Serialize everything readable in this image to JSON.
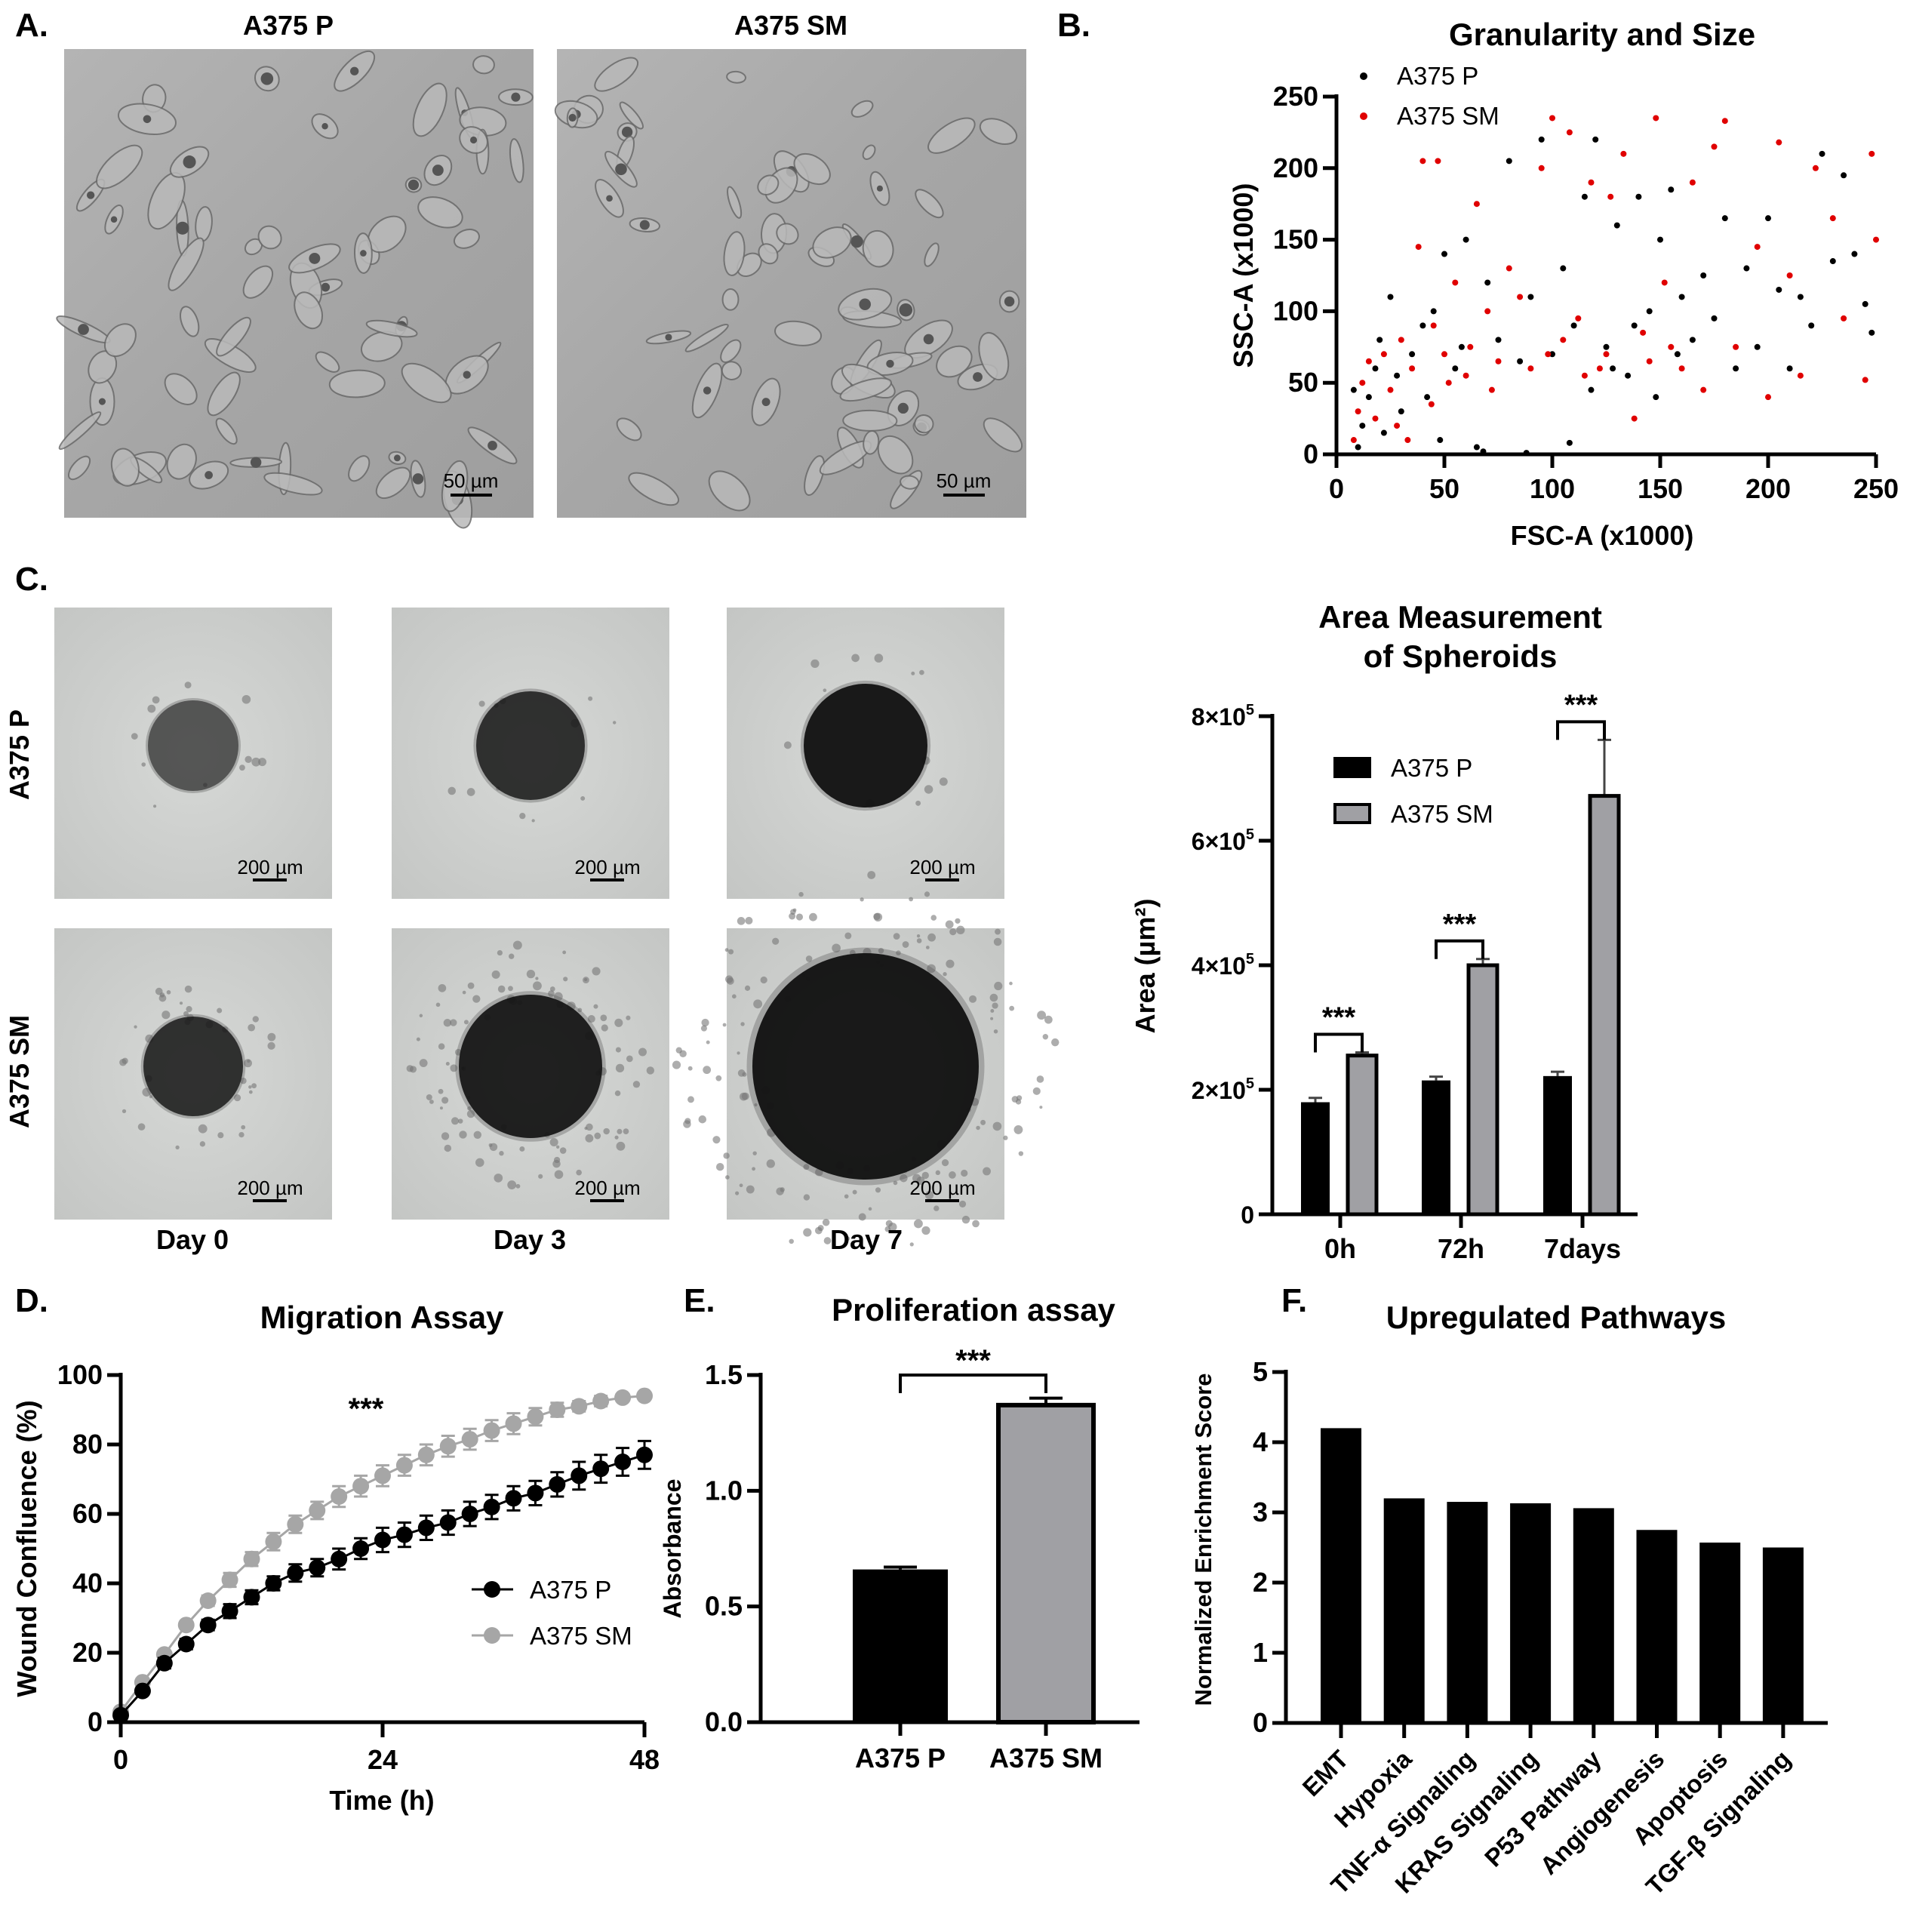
{
  "panel_a": {
    "letter": "A.",
    "labels": [
      "A375 P",
      "A375 SM"
    ],
    "scale_bar": "50 µm"
  },
  "panel_c": {
    "letter": "C.",
    "row_labels": [
      "A375 P",
      "A375 SM"
    ],
    "col_labels": [
      "Day 0",
      "Day 3",
      "Day 7"
    ],
    "scale_bar": "200 µm"
  },
  "panel_b": {
    "letter": "B."
  },
  "panel_d": {
    "letter": "D."
  },
  "panel_e": {
    "letter": "E."
  },
  "panel_f": {
    "letter": "F."
  },
  "chart_data": [
    {
      "id": "scatter",
      "type": "scatter",
      "title": "Granularity and Size",
      "xlabel": "FSC-A (x1000)",
      "ylabel": "SSC-A (x1000)",
      "xlim": [
        0,
        250
      ],
      "ylim": [
        0,
        250
      ],
      "xticks": [
        "0",
        "50",
        "100",
        "150",
        "200",
        "250"
      ],
      "yticks": [
        "0",
        "50",
        "100",
        "150",
        "200",
        "250"
      ],
      "legend_position": "top-left",
      "series": [
        {
          "name": "A375 P",
          "color": "#000000",
          "points": [
            [
              10,
              5
            ],
            [
              12,
              20
            ],
            [
              15,
              40
            ],
            [
              18,
              60
            ],
            [
              20,
              80
            ],
            [
              25,
              110
            ],
            [
              30,
              30
            ],
            [
              35,
              70
            ],
            [
              40,
              90
            ],
            [
              45,
              100
            ],
            [
              50,
              140
            ],
            [
              55,
              60
            ],
            [
              60,
              150
            ],
            [
              65,
              5
            ],
            [
              70,
              120
            ],
            [
              75,
              80
            ],
            [
              80,
              205
            ],
            [
              85,
              65
            ],
            [
              90,
              110
            ],
            [
              95,
              220
            ],
            [
              100,
              70
            ],
            [
              105,
              130
            ],
            [
              110,
              90
            ],
            [
              115,
              180
            ],
            [
              120,
              220
            ],
            [
              125,
              75
            ],
            [
              130,
              160
            ],
            [
              135,
              55
            ],
            [
              140,
              180
            ],
            [
              145,
              100
            ],
            [
              150,
              150
            ],
            [
              155,
              185
            ],
            [
              160,
              110
            ],
            [
              165,
              80
            ],
            [
              170,
              125
            ],
            [
              175,
              95
            ],
            [
              180,
              165
            ],
            [
              185,
              60
            ],
            [
              190,
              130
            ],
            [
              195,
              75
            ],
            [
              200,
              165
            ],
            [
              205,
              115
            ],
            [
              210,
              60
            ],
            [
              215,
              110
            ],
            [
              220,
              90
            ],
            [
              225,
              210
            ],
            [
              230,
              135
            ],
            [
              235,
              195
            ],
            [
              240,
              140
            ],
            [
              245,
              105
            ],
            [
              248,
              85
            ],
            [
              8,
              45
            ],
            [
              22,
              15
            ],
            [
              28,
              55
            ],
            [
              42,
              40
            ],
            [
              48,
              10
            ],
            [
              58,
              75
            ],
            [
              68,
              2
            ],
            [
              88,
              1
            ],
            [
              108,
              8
            ],
            [
              118,
              45
            ],
            [
              128,
              60
            ],
            [
              138,
              90
            ],
            [
              148,
              40
            ],
            [
              158,
              70
            ]
          ]
        },
        {
          "name": "A375 SM",
          "color": "#e00000",
          "points": [
            [
              8,
              10
            ],
            [
              10,
              30
            ],
            [
              12,
              50
            ],
            [
              15,
              65
            ],
            [
              18,
              25
            ],
            [
              22,
              70
            ],
            [
              25,
              45
            ],
            [
              30,
              80
            ],
            [
              35,
              60
            ],
            [
              38,
              145
            ],
            [
              40,
              205
            ],
            [
              45,
              90
            ],
            [
              47,
              205
            ],
            [
              50,
              70
            ],
            [
              55,
              120
            ],
            [
              60,
              55
            ],
            [
              65,
              175
            ],
            [
              70,
              100
            ],
            [
              75,
              65
            ],
            [
              80,
              130
            ],
            [
              85,
              110
            ],
            [
              90,
              60
            ],
            [
              95,
              200
            ],
            [
              100,
              235
            ],
            [
              105,
              80
            ],
            [
              108,
              225
            ],
            [
              112,
              95
            ],
            [
              118,
              190
            ],
            [
              122,
              60
            ],
            [
              127,
              180
            ],
            [
              133,
              210
            ],
            [
              138,
              25
            ],
            [
              142,
              85
            ],
            [
              148,
              235
            ],
            [
              152,
              120
            ],
            [
              160,
              60
            ],
            [
              165,
              190
            ],
            [
              175,
              215
            ],
            [
              180,
              233
            ],
            [
              185,
              75
            ],
            [
              195,
              145
            ],
            [
              200,
              40
            ],
            [
              205,
              218
            ],
            [
              210,
              125
            ],
            [
              215,
              55
            ],
            [
              222,
              200
            ],
            [
              230,
              165
            ],
            [
              235,
              95
            ],
            [
              245,
              52
            ],
            [
              248,
              210
            ],
            [
              250,
              150
            ],
            [
              28,
              20
            ],
            [
              33,
              10
            ],
            [
              44,
              35
            ],
            [
              52,
              50
            ],
            [
              62,
              75
            ],
            [
              72,
              45
            ],
            [
              98,
              70
            ],
            [
              115,
              55
            ],
            [
              125,
              70
            ],
            [
              145,
              65
            ],
            [
              155,
              75
            ],
            [
              170,
              45
            ]
          ]
        }
      ]
    },
    {
      "id": "spheroid_area",
      "type": "bar",
      "title": [
        "Area Measurement",
        "of Spheroids"
      ],
      "ylabel": "Area (µm²)",
      "categories": [
        "0h",
        "72h",
        "7days"
      ],
      "ylim": [
        0,
        800000
      ],
      "yticks": [
        {
          "v": 0,
          "base": "0",
          "exp": ""
        },
        {
          "v": 200000,
          "base": "2×10",
          "exp": "5"
        },
        {
          "v": 400000,
          "base": "4×10",
          "exp": "5"
        },
        {
          "v": 600000,
          "base": "6×10",
          "exp": "5"
        },
        {
          "v": 800000,
          "base": "8×10",
          "exp": "5"
        }
      ],
      "legend_position": "top-left",
      "series": [
        {
          "name": "A375 P",
          "color": "#000000",
          "values": [
            180000,
            215000,
            222000
          ],
          "errors": [
            7000,
            6000,
            7000
          ]
        },
        {
          "name": "A375 SM",
          "color": "#a0a0a4",
          "values": [
            255000,
            400000,
            672000
          ],
          "errors": [
            5000,
            10000,
            90000
          ]
        }
      ],
      "significance": [
        "***",
        "***",
        "***"
      ]
    },
    {
      "id": "migration",
      "type": "line",
      "title": "Migration Assay",
      "xlabel": "Time (h)",
      "ylabel": "Wound Confluence (%)",
      "xlim": [
        0,
        48
      ],
      "ylim": [
        0,
        100
      ],
      "xticks": [
        "0",
        "24",
        "48"
      ],
      "yticks": [
        "0",
        "20",
        "40",
        "60",
        "80",
        "100"
      ],
      "legend_position": "right",
      "annotation": "***",
      "x": [
        0,
        2,
        4,
        6,
        8,
        10,
        12,
        14,
        16,
        18,
        20,
        22,
        24,
        26,
        28,
        30,
        32,
        34,
        36,
        38,
        40,
        42,
        44,
        46,
        48
      ],
      "series": [
        {
          "name": "A375 P",
          "color": "#000000",
          "values": [
            2,
            9,
            17,
            22.5,
            28,
            32,
            36,
            40,
            43,
            44.5,
            47,
            50,
            52.5,
            54,
            56,
            57.5,
            60,
            62,
            64.5,
            66,
            68.5,
            71,
            73,
            75,
            77
          ],
          "errors": [
            0.5,
            1,
            1.5,
            1.5,
            1.5,
            2,
            2,
            2,
            2.5,
            2.5,
            3,
            3,
            3.5,
            3.5,
            3.5,
            3.5,
            3.5,
            3.5,
            3.5,
            3.5,
            3.5,
            4,
            4,
            4,
            4
          ]
        },
        {
          "name": "A375 SM",
          "color": "#a6a6a6",
          "values": [
            3,
            11.5,
            19.5,
            28,
            35,
            41,
            47,
            52,
            57,
            61,
            65,
            68,
            71,
            74,
            77,
            79.5,
            81.5,
            84,
            86,
            88,
            90,
            91,
            92.5,
            93.5,
            94
          ],
          "errors": [
            0.5,
            1,
            1,
            1,
            1.5,
            2,
            2,
            2.5,
            2.5,
            2.5,
            3,
            3,
            3,
            3,
            3,
            3,
            3,
            3,
            3,
            2.5,
            2,
            1.5,
            1.5,
            1,
            1
          ]
        }
      ]
    },
    {
      "id": "proliferation",
      "type": "bar",
      "title": "Proliferation assay",
      "ylabel": "Absorbance",
      "categories": [
        "A375 P",
        "A375 SM"
      ],
      "ylim": [
        0,
        1.5
      ],
      "yticks": [
        "0.0",
        "0.5",
        "1.0",
        "1.5"
      ],
      "values": [
        0.66,
        1.37
      ],
      "errors": [
        0.01,
        0.03
      ],
      "colors": [
        "#000000",
        "#a0a0a4"
      ],
      "annotation": "***"
    },
    {
      "id": "pathways",
      "type": "bar",
      "title": "Upregulated Pathways",
      "ylabel": "Normalized Enrichment Score",
      "categories": [
        "EMT",
        "Hypoxia",
        "TNF-α Signaling",
        "KRAS Signaling",
        "P53 Pathway",
        "Angiogenesis",
        "Apoptosis",
        "TGF-β Signaling"
      ],
      "values": [
        4.2,
        3.2,
        3.15,
        3.13,
        3.06,
        2.75,
        2.57,
        2.5
      ],
      "ylim": [
        0,
        5
      ],
      "yticks": [
        "0",
        "1",
        "2",
        "3",
        "4",
        "5"
      ],
      "color": "#000000"
    }
  ]
}
